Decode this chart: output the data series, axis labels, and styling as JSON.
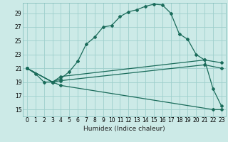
{
  "xlabel": "Humidex (Indice chaleur)",
  "x_ticks": [
    0,
    1,
    2,
    3,
    4,
    5,
    6,
    7,
    8,
    9,
    10,
    11,
    12,
    13,
    14,
    15,
    16,
    17,
    18,
    19,
    20,
    21,
    22,
    23
  ],
  "y_ticks": [
    15,
    17,
    19,
    21,
    23,
    25,
    27,
    29
  ],
  "xlim": [
    -0.5,
    23.5
  ],
  "ylim": [
    14.0,
    30.5
  ],
  "background_color": "#cceae7",
  "grid_color": "#9ecfcc",
  "line_color": "#1a6b5a",
  "line1": {
    "x": [
      0,
      1,
      2,
      3,
      4,
      5,
      6,
      7,
      8,
      9,
      10,
      11,
      12,
      13,
      14,
      15,
      16,
      17,
      18,
      19,
      20,
      21,
      22,
      23
    ],
    "y": [
      21.0,
      20.2,
      19.0,
      19.0,
      19.5,
      20.5,
      22.0,
      24.5,
      25.5,
      27.0,
      27.2,
      28.5,
      29.2,
      29.5,
      30.0,
      30.3,
      30.2,
      29.0,
      26.0,
      25.2,
      23.0,
      22.2,
      18.0,
      15.5
    ]
  },
  "line2": {
    "x": [
      0,
      3,
      4,
      22,
      23
    ],
    "y": [
      21.0,
      19.0,
      18.5,
      15.0,
      15.0
    ]
  },
  "line3": {
    "x": [
      0,
      3,
      4,
      21,
      23
    ],
    "y": [
      21.0,
      19.0,
      19.2,
      21.5,
      21.0
    ]
  },
  "line4": {
    "x": [
      0,
      3,
      4,
      21,
      23
    ],
    "y": [
      21.0,
      19.0,
      19.8,
      22.2,
      21.8
    ]
  }
}
